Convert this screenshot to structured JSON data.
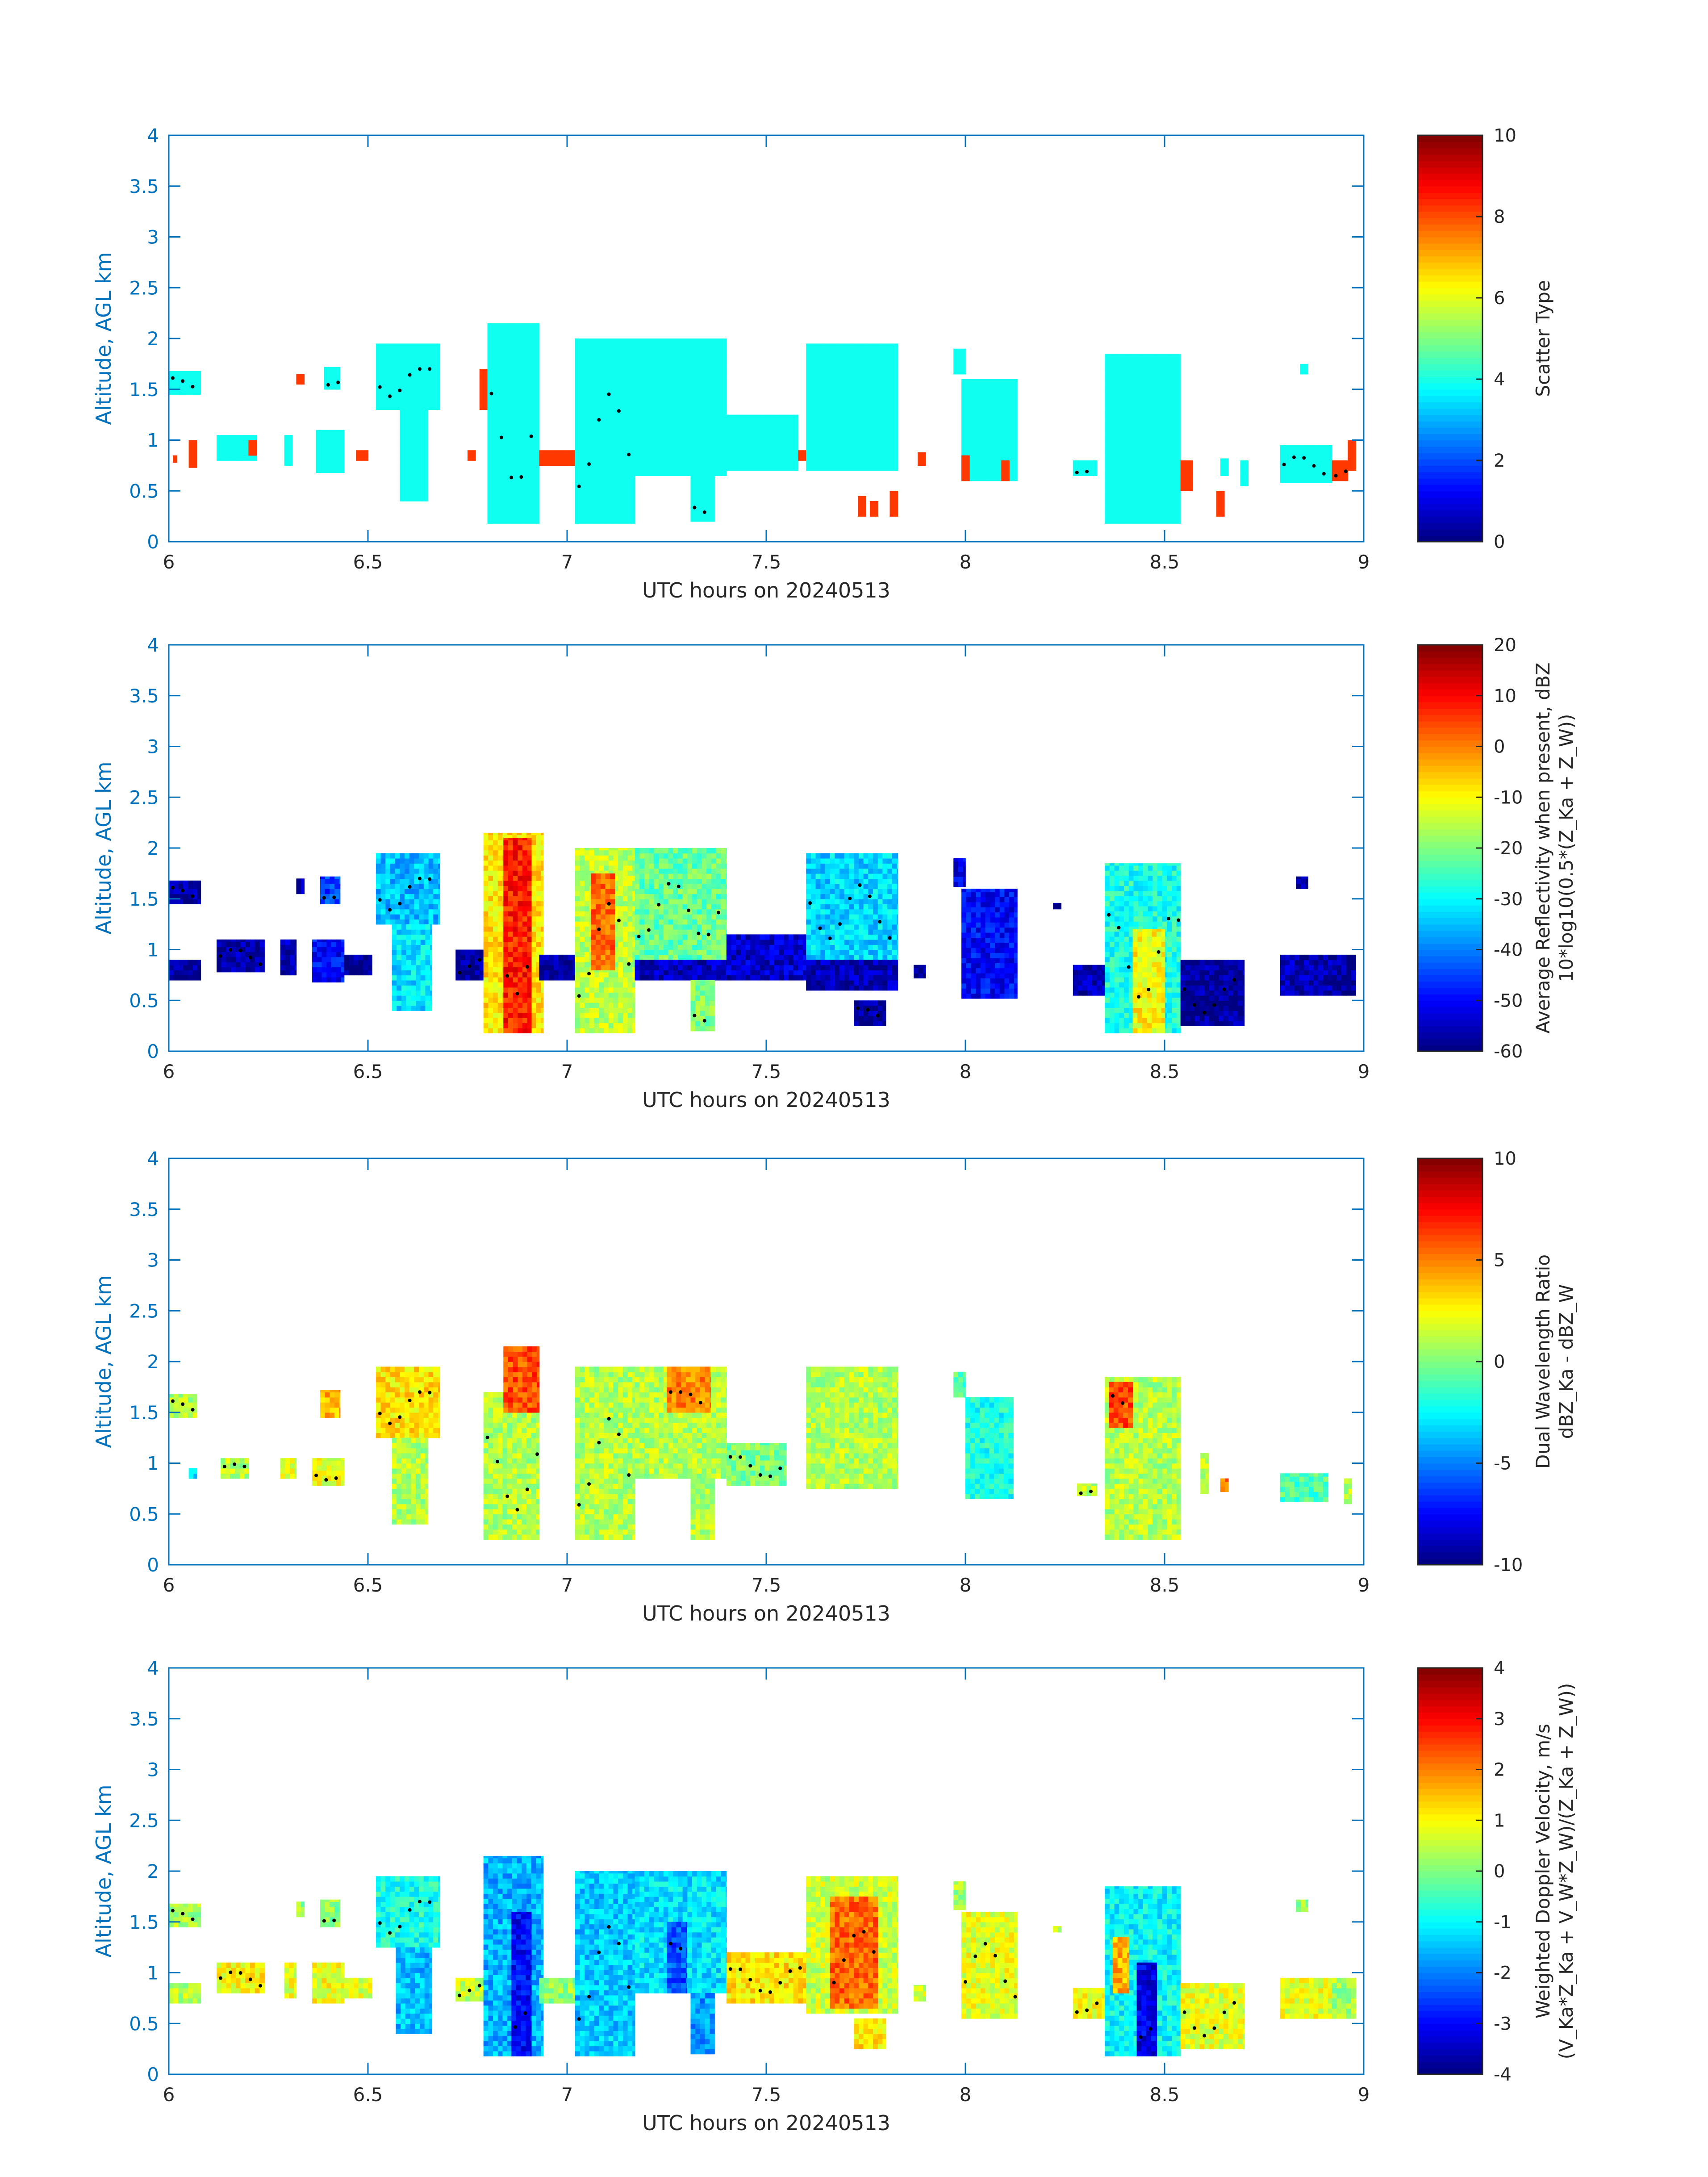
{
  "figure": {
    "xlabel": "UTC hours on 20240513",
    "ylabel": "Altitude, AGL km",
    "xlim": [
      6,
      9
    ],
    "ylim": [
      0,
      4
    ],
    "xticks": [
      "6",
      "6.5",
      "7",
      "7.5",
      "8",
      "8.5",
      "9"
    ],
    "yticks": [
      "0",
      "0.5",
      "1",
      "1.5",
      "2",
      "2.5",
      "3",
      "3.5",
      "4"
    ],
    "axis_color": "#0072BD",
    "colormap": "jet"
  },
  "chart_data": [
    {
      "type": "heatmap",
      "name": "scatter-type",
      "colorbar_label": [
        "Scatter Type"
      ],
      "clim": [
        0,
        10
      ],
      "cticks": [
        "0",
        "2",
        "4",
        "6",
        "8",
        "10"
      ],
      "x": [
        6,
        9
      ],
      "y": [
        0,
        4
      ],
      "grid": false,
      "cells": [
        {
          "x0": 6.0,
          "x1": 6.08,
          "y0": 1.45,
          "y1": 1.68,
          "v": 3.9
        },
        {
          "x0": 6.01,
          "x1": 6.02,
          "y0": 0.78,
          "y1": 0.85,
          "v": 8.2
        },
        {
          "x0": 6.05,
          "x1": 6.07,
          "y0": 0.73,
          "y1": 1.0,
          "v": 8.2
        },
        {
          "x0": 6.12,
          "x1": 6.22,
          "y0": 0.8,
          "y1": 1.05,
          "v": 3.9
        },
        {
          "x0": 6.2,
          "x1": 6.22,
          "y0": 0.85,
          "y1": 1.0,
          "v": 8.2
        },
        {
          "x0": 6.29,
          "x1": 6.31,
          "y0": 0.75,
          "y1": 1.05,
          "v": 3.9
        },
        {
          "x0": 6.32,
          "x1": 6.34,
          "y0": 1.55,
          "y1": 1.65,
          "v": 8.2
        },
        {
          "x0": 6.37,
          "x1": 6.44,
          "y0": 0.68,
          "y1": 1.1,
          "v": 3.9
        },
        {
          "x0": 6.39,
          "x1": 6.43,
          "y0": 1.5,
          "y1": 1.72,
          "v": 3.9
        },
        {
          "x0": 6.47,
          "x1": 6.5,
          "y0": 0.8,
          "y1": 0.9,
          "v": 8.2
        },
        {
          "x0": 6.52,
          "x1": 6.68,
          "y0": 1.3,
          "y1": 1.95,
          "v": 3.9
        },
        {
          "x0": 6.58,
          "x1": 6.65,
          "y0": 0.4,
          "y1": 1.3,
          "v": 3.9
        },
        {
          "x0": 6.75,
          "x1": 6.77,
          "y0": 0.8,
          "y1": 0.9,
          "v": 8.2
        },
        {
          "x0": 6.78,
          "x1": 6.8,
          "y0": 1.3,
          "y1": 1.7,
          "v": 8.2
        },
        {
          "x0": 6.8,
          "x1": 6.93,
          "y0": 0.18,
          "y1": 2.15,
          "v": 3.9
        },
        {
          "x0": 6.93,
          "x1": 7.03,
          "y0": 0.75,
          "y1": 0.9,
          "v": 8.2
        },
        {
          "x0": 7.02,
          "x1": 7.17,
          "y0": 0.18,
          "y1": 2.0,
          "v": 3.9
        },
        {
          "x0": 7.17,
          "x1": 7.4,
          "y0": 0.65,
          "y1": 2.0,
          "v": 3.9
        },
        {
          "x0": 7.31,
          "x1": 7.37,
          "y0": 0.2,
          "y1": 0.65,
          "v": 3.9
        },
        {
          "x0": 7.4,
          "x1": 7.58,
          "y0": 0.7,
          "y1": 1.25,
          "v": 3.9
        },
        {
          "x0": 7.58,
          "x1": 7.6,
          "y0": 0.8,
          "y1": 0.9,
          "v": 8.2
        },
        {
          "x0": 7.6,
          "x1": 7.83,
          "y0": 0.7,
          "y1": 1.95,
          "v": 3.9
        },
        {
          "x0": 7.73,
          "x1": 7.75,
          "y0": 0.25,
          "y1": 0.45,
          "v": 8.2
        },
        {
          "x0": 7.76,
          "x1": 7.78,
          "y0": 0.25,
          "y1": 0.4,
          "v": 8.2
        },
        {
          "x0": 7.81,
          "x1": 7.83,
          "y0": 0.25,
          "y1": 0.5,
          "v": 8.2
        },
        {
          "x0": 7.88,
          "x1": 7.9,
          "y0": 0.75,
          "y1": 0.88,
          "v": 8.2
        },
        {
          "x0": 7.97,
          "x1": 8.0,
          "y0": 1.65,
          "y1": 1.9,
          "v": 3.9
        },
        {
          "x0": 7.99,
          "x1": 8.13,
          "y0": 0.6,
          "y1": 1.6,
          "v": 3.9
        },
        {
          "x0": 7.99,
          "x1": 8.01,
          "y0": 0.6,
          "y1": 0.85,
          "v": 8.2
        },
        {
          "x0": 8.09,
          "x1": 8.11,
          "y0": 0.6,
          "y1": 0.8,
          "v": 8.2
        },
        {
          "x0": 8.27,
          "x1": 8.33,
          "y0": 0.65,
          "y1": 0.8,
          "v": 3.9
        },
        {
          "x0": 8.35,
          "x1": 8.54,
          "y0": 0.18,
          "y1": 1.85,
          "v": 3.9
        },
        {
          "x0": 8.54,
          "x1": 8.57,
          "y0": 0.5,
          "y1": 0.8,
          "v": 8.2
        },
        {
          "x0": 8.63,
          "x1": 8.65,
          "y0": 0.25,
          "y1": 0.5,
          "v": 8.2
        },
        {
          "x0": 8.64,
          "x1": 8.66,
          "y0": 0.65,
          "y1": 0.82,
          "v": 3.9
        },
        {
          "x0": 8.69,
          "x1": 8.71,
          "y0": 0.55,
          "y1": 0.8,
          "v": 3.9
        },
        {
          "x0": 8.79,
          "x1": 8.92,
          "y0": 0.58,
          "y1": 0.95,
          "v": 3.9
        },
        {
          "x0": 8.84,
          "x1": 8.86,
          "y0": 1.65,
          "y1": 1.75,
          "v": 3.9
        },
        {
          "x0": 8.92,
          "x1": 8.96,
          "y0": 0.6,
          "y1": 0.8,
          "v": 8.2
        },
        {
          "x0": 8.96,
          "x1": 8.98,
          "y0": 0.7,
          "y1": 1.0,
          "v": 8.2
        }
      ]
    },
    {
      "type": "heatmap",
      "name": "reflectivity",
      "colorbar_label": [
        "Average Reflectivity when present, dBZ",
        "10*log10(0.5*(Z_Ka + Z_W))"
      ],
      "clim": [
        -60,
        20
      ],
      "cticks": [
        "-60",
        "-50",
        "-40",
        "-30",
        "-20",
        "-10",
        "0",
        "10",
        "20"
      ],
      "x": [
        6,
        9
      ],
      "y": [
        0,
        4
      ],
      "grid": false,
      "cells": [
        {
          "x0": 6.0,
          "x1": 6.08,
          "y0": 1.45,
          "y1": 1.68,
          "v": -57
        },
        {
          "x0": 6.0,
          "x1": 6.08,
          "y0": 0.7,
          "y1": 0.9,
          "v": -58
        },
        {
          "x0": 6.12,
          "x1": 6.24,
          "y0": 0.78,
          "y1": 1.1,
          "v": -57
        },
        {
          "x0": 6.28,
          "x1": 6.32,
          "y0": 0.75,
          "y1": 1.1,
          "v": -56
        },
        {
          "x0": 6.32,
          "x1": 6.34,
          "y0": 1.55,
          "y1": 1.7,
          "v": -55
        },
        {
          "x0": 6.36,
          "x1": 6.44,
          "y0": 0.68,
          "y1": 1.1,
          "v": -50
        },
        {
          "x0": 6.38,
          "x1": 6.43,
          "y0": 1.45,
          "y1": 1.72,
          "v": -45
        },
        {
          "x0": 6.44,
          "x1": 6.51,
          "y0": 0.75,
          "y1": 0.95,
          "v": -58
        },
        {
          "x0": 6.52,
          "x1": 6.68,
          "y0": 1.25,
          "y1": 1.95,
          "v": -35
        },
        {
          "x0": 6.56,
          "x1": 6.66,
          "y0": 0.4,
          "y1": 1.25,
          "v": -32
        },
        {
          "x0": 6.72,
          "x1": 6.8,
          "y0": 0.7,
          "y1": 1.0,
          "v": -58
        },
        {
          "x0": 6.79,
          "x1": 6.94,
          "y0": 0.18,
          "y1": 2.15,
          "v": -8
        },
        {
          "x0": 6.84,
          "x1": 6.91,
          "y0": 0.18,
          "y1": 2.1,
          "v": 8
        },
        {
          "x0": 6.93,
          "x1": 7.02,
          "y0": 0.7,
          "y1": 0.95,
          "v": -58
        },
        {
          "x0": 7.02,
          "x1": 7.17,
          "y0": 0.18,
          "y1": 2.0,
          "v": -15
        },
        {
          "x0": 7.06,
          "x1": 7.12,
          "y0": 0.8,
          "y1": 1.75,
          "v": 2
        },
        {
          "x0": 7.17,
          "x1": 7.4,
          "y0": 0.9,
          "y1": 2.0,
          "v": -22
        },
        {
          "x0": 7.17,
          "x1": 7.4,
          "y0": 0.7,
          "y1": 0.9,
          "v": -55
        },
        {
          "x0": 7.31,
          "x1": 7.37,
          "y0": 0.2,
          "y1": 0.7,
          "v": -20
        },
        {
          "x0": 7.4,
          "x1": 7.6,
          "y0": 0.7,
          "y1": 1.15,
          "v": -54
        },
        {
          "x0": 7.6,
          "x1": 7.83,
          "y0": 0.9,
          "y1": 1.95,
          "v": -33
        },
        {
          "x0": 7.6,
          "x1": 7.83,
          "y0": 0.6,
          "y1": 0.9,
          "v": -56
        },
        {
          "x0": 7.72,
          "x1": 7.8,
          "y0": 0.25,
          "y1": 0.5,
          "v": -58
        },
        {
          "x0": 7.87,
          "x1": 7.9,
          "y0": 0.72,
          "y1": 0.85,
          "v": -58
        },
        {
          "x0": 7.97,
          "x1": 8.0,
          "y0": 1.62,
          "y1": 1.9,
          "v": -52
        },
        {
          "x0": 7.99,
          "x1": 8.13,
          "y0": 0.52,
          "y1": 1.6,
          "v": -50
        },
        {
          "x0": 8.22,
          "x1": 8.24,
          "y0": 1.4,
          "y1": 1.46,
          "v": -58
        },
        {
          "x0": 8.27,
          "x1": 8.35,
          "y0": 0.55,
          "y1": 0.85,
          "v": -56
        },
        {
          "x0": 8.35,
          "x1": 8.54,
          "y0": 0.18,
          "y1": 1.85,
          "v": -28
        },
        {
          "x0": 8.42,
          "x1": 8.5,
          "y0": 0.18,
          "y1": 1.2,
          "v": -10
        },
        {
          "x0": 8.54,
          "x1": 8.7,
          "y0": 0.25,
          "y1": 0.9,
          "v": -58
        },
        {
          "x0": 8.79,
          "x1": 8.92,
          "y0": 0.55,
          "y1": 0.95,
          "v": -56
        },
        {
          "x0": 8.83,
          "x1": 8.86,
          "y0": 1.6,
          "y1": 1.72,
          "v": -58
        },
        {
          "x0": 8.92,
          "x1": 8.98,
          "y0": 0.55,
          "y1": 0.95,
          "v": -58
        }
      ]
    },
    {
      "type": "heatmap",
      "name": "dual-wavelength-ratio",
      "colorbar_label": [
        "Dual Wavelength Ratio",
        "dBZ_Ka - dBZ_W"
      ],
      "clim": [
        -10,
        10
      ],
      "cticks": [
        "-10",
        "-5",
        "0",
        "5",
        "10"
      ],
      "x": [
        6,
        9
      ],
      "y": [
        0,
        4
      ],
      "grid": false,
      "cells": [
        {
          "x0": 6.0,
          "x1": 6.07,
          "y0": 1.45,
          "y1": 1.68,
          "v": 1
        },
        {
          "x0": 6.05,
          "x1": 6.07,
          "y0": 0.85,
          "y1": 0.95,
          "v": -3
        },
        {
          "x0": 6.13,
          "x1": 6.2,
          "y0": 0.85,
          "y1": 1.05,
          "v": 1
        },
        {
          "x0": 6.28,
          "x1": 6.32,
          "y0": 0.85,
          "y1": 1.05,
          "v": 2
        },
        {
          "x0": 6.36,
          "x1": 6.44,
          "y0": 0.78,
          "y1": 1.05,
          "v": 2
        },
        {
          "x0": 6.38,
          "x1": 6.43,
          "y0": 1.45,
          "y1": 1.72,
          "v": 4
        },
        {
          "x0": 6.52,
          "x1": 6.68,
          "y0": 1.25,
          "y1": 1.95,
          "v": 3
        },
        {
          "x0": 6.56,
          "x1": 6.65,
          "y0": 0.4,
          "y1": 1.25,
          "v": 1
        },
        {
          "x0": 6.79,
          "x1": 6.93,
          "y0": 0.25,
          "y1": 1.7,
          "v": 1
        },
        {
          "x0": 6.84,
          "x1": 6.93,
          "y0": 1.5,
          "y1": 2.15,
          "v": 6
        },
        {
          "x0": 7.02,
          "x1": 7.17,
          "y0": 0.25,
          "y1": 1.95,
          "v": 1
        },
        {
          "x0": 7.17,
          "x1": 7.4,
          "y0": 0.85,
          "y1": 1.95,
          "v": 1
        },
        {
          "x0": 7.25,
          "x1": 7.36,
          "y0": 1.5,
          "y1": 1.95,
          "v": 5
        },
        {
          "x0": 7.31,
          "x1": 7.37,
          "y0": 0.25,
          "y1": 0.85,
          "v": 1
        },
        {
          "x0": 7.4,
          "x1": 7.55,
          "y0": 0.78,
          "y1": 1.2,
          "v": 0
        },
        {
          "x0": 7.6,
          "x1": 7.83,
          "y0": 0.75,
          "y1": 1.95,
          "v": 1
        },
        {
          "x0": 7.97,
          "x1": 8.0,
          "y0": 1.65,
          "y1": 1.9,
          "v": -1
        },
        {
          "x0": 8.0,
          "x1": 8.12,
          "y0": 0.65,
          "y1": 1.65,
          "v": -2
        },
        {
          "x0": 8.28,
          "x1": 8.33,
          "y0": 0.68,
          "y1": 0.8,
          "v": 1
        },
        {
          "x0": 8.35,
          "x1": 8.54,
          "y0": 0.25,
          "y1": 1.85,
          "v": 1
        },
        {
          "x0": 8.36,
          "x1": 8.42,
          "y0": 1.35,
          "y1": 1.8,
          "v": 6
        },
        {
          "x0": 8.59,
          "x1": 8.61,
          "y0": 0.7,
          "y1": 1.1,
          "v": 1
        },
        {
          "x0": 8.64,
          "x1": 8.66,
          "y0": 0.72,
          "y1": 0.85,
          "v": 5
        },
        {
          "x0": 8.79,
          "x1": 8.91,
          "y0": 0.62,
          "y1": 0.9,
          "v": -1
        },
        {
          "x0": 8.95,
          "x1": 8.97,
          "y0": 0.6,
          "y1": 0.85,
          "v": 1
        }
      ]
    },
    {
      "type": "heatmap",
      "name": "weighted-doppler-velocity",
      "colorbar_label": [
        "Weighted Doppler Velocity, m/s",
        "(V_Ka*Z_Ka + V_W*Z_W)/(Z_Ka + Z_W))"
      ],
      "clim": [
        -4,
        4
      ],
      "cticks": [
        "-4",
        "-3",
        "-2",
        "-1",
        "0",
        "1",
        "2",
        "3",
        "4"
      ],
      "x": [
        6,
        9
      ],
      "y": [
        0,
        4
      ],
      "grid": false,
      "cells": [
        {
          "x0": 6.0,
          "x1": 6.08,
          "y0": 1.45,
          "y1": 1.68,
          "v": 0.3
        },
        {
          "x0": 6.0,
          "x1": 6.08,
          "y0": 0.7,
          "y1": 0.9,
          "v": 0.4
        },
        {
          "x0": 6.12,
          "x1": 6.24,
          "y0": 0.8,
          "y1": 1.1,
          "v": 1.0
        },
        {
          "x0": 6.29,
          "x1": 6.32,
          "y0": 0.75,
          "y1": 1.1,
          "v": 0.8
        },
        {
          "x0": 6.32,
          "x1": 6.34,
          "y0": 1.55,
          "y1": 1.7,
          "v": 0.2
        },
        {
          "x0": 6.36,
          "x1": 6.44,
          "y0": 0.7,
          "y1": 1.1,
          "v": 0.9
        },
        {
          "x0": 6.38,
          "x1": 6.43,
          "y0": 1.45,
          "y1": 1.72,
          "v": 0.1
        },
        {
          "x0": 6.44,
          "x1": 6.51,
          "y0": 0.75,
          "y1": 0.95,
          "v": 0.7
        },
        {
          "x0": 6.52,
          "x1": 6.68,
          "y0": 1.25,
          "y1": 1.95,
          "v": -0.8
        },
        {
          "x0": 6.57,
          "x1": 6.66,
          "y0": 0.4,
          "y1": 1.25,
          "v": -1.5
        },
        {
          "x0": 6.72,
          "x1": 6.8,
          "y0": 0.72,
          "y1": 0.95,
          "v": 0.6
        },
        {
          "x0": 6.79,
          "x1": 6.94,
          "y0": 0.18,
          "y1": 2.15,
          "v": -1.6
        },
        {
          "x0": 6.86,
          "x1": 6.91,
          "y0": 0.18,
          "y1": 1.6,
          "v": -3.0
        },
        {
          "x0": 6.93,
          "x1": 7.02,
          "y0": 0.7,
          "y1": 0.95,
          "v": 0.2
        },
        {
          "x0": 7.02,
          "x1": 7.17,
          "y0": 0.18,
          "y1": 2.0,
          "v": -1.4
        },
        {
          "x0": 7.17,
          "x1": 7.4,
          "y0": 0.8,
          "y1": 2.0,
          "v": -1.2
        },
        {
          "x0": 7.25,
          "x1": 7.3,
          "y0": 0.8,
          "y1": 1.5,
          "v": -2.4
        },
        {
          "x0": 7.31,
          "x1": 7.37,
          "y0": 0.2,
          "y1": 0.8,
          "v": -1.8
        },
        {
          "x0": 7.4,
          "x1": 7.6,
          "y0": 0.7,
          "y1": 1.2,
          "v": 1.2
        },
        {
          "x0": 7.6,
          "x1": 7.83,
          "y0": 0.6,
          "y1": 1.95,
          "v": 0.6
        },
        {
          "x0": 7.66,
          "x1": 7.78,
          "y0": 0.65,
          "y1": 1.75,
          "v": 2.2
        },
        {
          "x0": 7.72,
          "x1": 7.8,
          "y0": 0.25,
          "y1": 0.55,
          "v": 1.2
        },
        {
          "x0": 7.87,
          "x1": 7.9,
          "y0": 0.72,
          "y1": 0.88,
          "v": 0.6
        },
        {
          "x0": 7.97,
          "x1": 8.0,
          "y0": 1.62,
          "y1": 1.9,
          "v": 0.3
        },
        {
          "x0": 7.99,
          "x1": 8.13,
          "y0": 0.55,
          "y1": 1.6,
          "v": 0.8
        },
        {
          "x0": 8.22,
          "x1": 8.24,
          "y0": 1.4,
          "y1": 1.46,
          "v": 0.3
        },
        {
          "x0": 8.27,
          "x1": 8.35,
          "y0": 0.55,
          "y1": 0.85,
          "v": 0.9
        },
        {
          "x0": 8.35,
          "x1": 8.54,
          "y0": 0.18,
          "y1": 1.85,
          "v": -1.0
        },
        {
          "x0": 8.43,
          "x1": 8.48,
          "y0": 0.18,
          "y1": 1.1,
          "v": -3.2
        },
        {
          "x0": 8.37,
          "x1": 8.41,
          "y0": 0.8,
          "y1": 1.35,
          "v": 1.6
        },
        {
          "x0": 8.54,
          "x1": 8.7,
          "y0": 0.25,
          "y1": 0.9,
          "v": 0.8
        },
        {
          "x0": 8.79,
          "x1": 8.92,
          "y0": 0.55,
          "y1": 0.95,
          "v": 0.8
        },
        {
          "x0": 8.83,
          "x1": 8.86,
          "y0": 1.6,
          "y1": 1.72,
          "v": 0.2
        },
        {
          "x0": 8.92,
          "x1": 8.98,
          "y0": 0.55,
          "y1": 0.95,
          "v": 0.3
        }
      ]
    }
  ]
}
